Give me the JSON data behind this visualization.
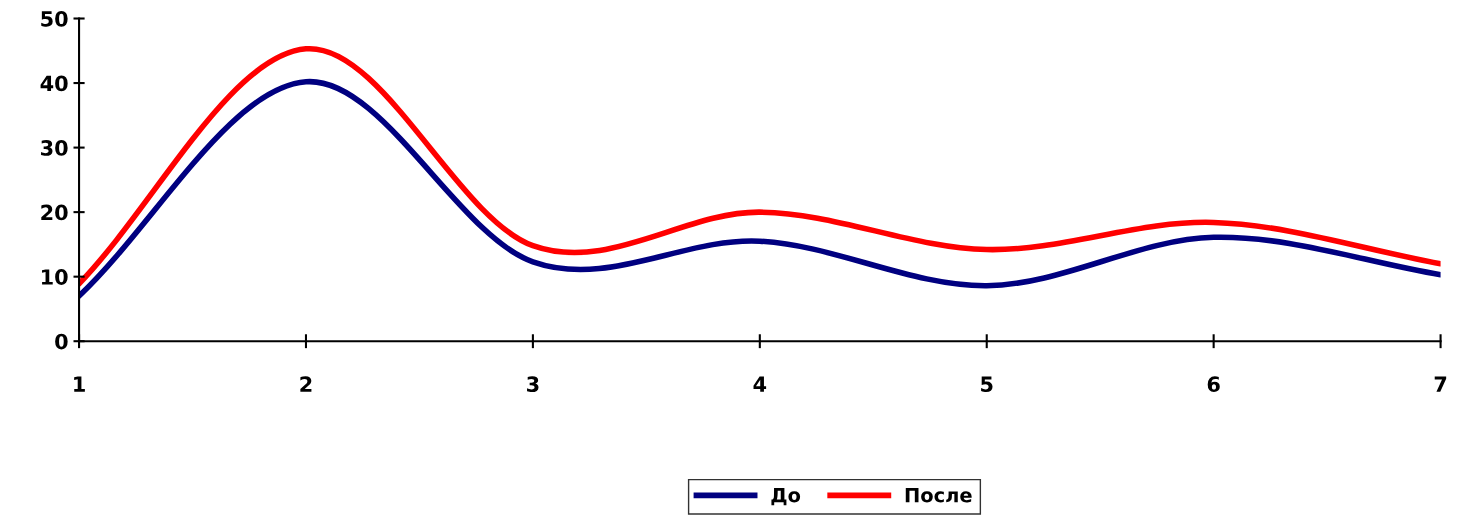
{
  "chart_data": {
    "type": "line",
    "x": [
      1,
      2,
      3,
      4,
      5,
      6,
      7
    ],
    "series": [
      {
        "name": "До",
        "color": "#000080",
        "values": [
          7.0,
          40.2,
          12.3,
          15.5,
          8.6,
          16.1,
          10.3
        ]
      },
      {
        "name": "После",
        "color": "#ff0000",
        "values": [
          8.9,
          45.3,
          14.8,
          20.0,
          14.2,
          18.4,
          12.0
        ]
      }
    ],
    "xlim": [
      1,
      7
    ],
    "xticks": [
      1,
      2,
      3,
      4,
      5,
      6,
      7
    ],
    "ylim": [
      0,
      50
    ],
    "yticks": [
      0,
      10,
      20,
      30,
      40,
      50
    ],
    "grid": false,
    "legend": "bottom",
    "marker": "none",
    "line_style": "solid"
  }
}
